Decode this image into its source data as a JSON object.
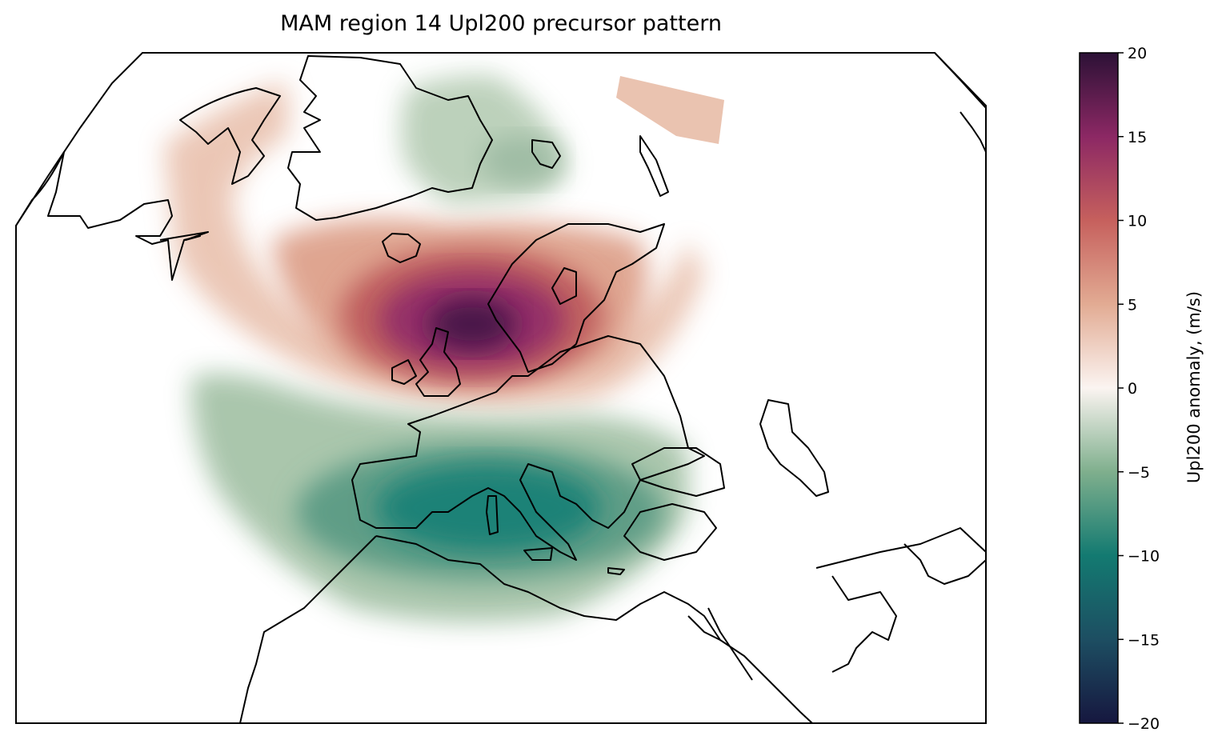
{
  "title": "MAM region 14 Upl200 precursor pattern",
  "colorbar": {
    "label": "Upl200 anomaly, (m/s)",
    "vmin": -20,
    "vmax": 20,
    "ticks": [
      {
        "value": 20,
        "label": "20"
      },
      {
        "value": 15,
        "label": "15"
      },
      {
        "value": 10,
        "label": "10"
      },
      {
        "value": 5,
        "label": "5"
      },
      {
        "value": 0,
        "label": "0"
      },
      {
        "value": -5,
        "label": "−5"
      },
      {
        "value": -10,
        "label": "−10"
      },
      {
        "value": -15,
        "label": "−15"
      },
      {
        "value": -20,
        "label": "−20"
      }
    ],
    "colormap_stops": [
      {
        "value": -20,
        "color": "#16173f"
      },
      {
        "value": -15,
        "color": "#1d4e62"
      },
      {
        "value": -10,
        "color": "#137a71"
      },
      {
        "value": -5,
        "color": "#7faf8d"
      },
      {
        "value": 0,
        "color": "#fbf4f1"
      },
      {
        "value": 5,
        "color": "#e2ab93"
      },
      {
        "value": 10,
        "color": "#c6605d"
      },
      {
        "value": 15,
        "color": "#8c2864"
      },
      {
        "value": 20,
        "color": "#2c1136"
      }
    ]
  },
  "map": {
    "projection": "orthographic",
    "region": "North Atlantic and Europe",
    "pattern": "dipole",
    "positive_center": {
      "name": "North Sea / Scandinavia",
      "value": 19
    },
    "negative_center": {
      "name": "Western Mediterranean",
      "value": -12
    },
    "secondary_negative_center": {
      "name": "Greenland",
      "value": -4
    },
    "masked_outside": "white"
  }
}
